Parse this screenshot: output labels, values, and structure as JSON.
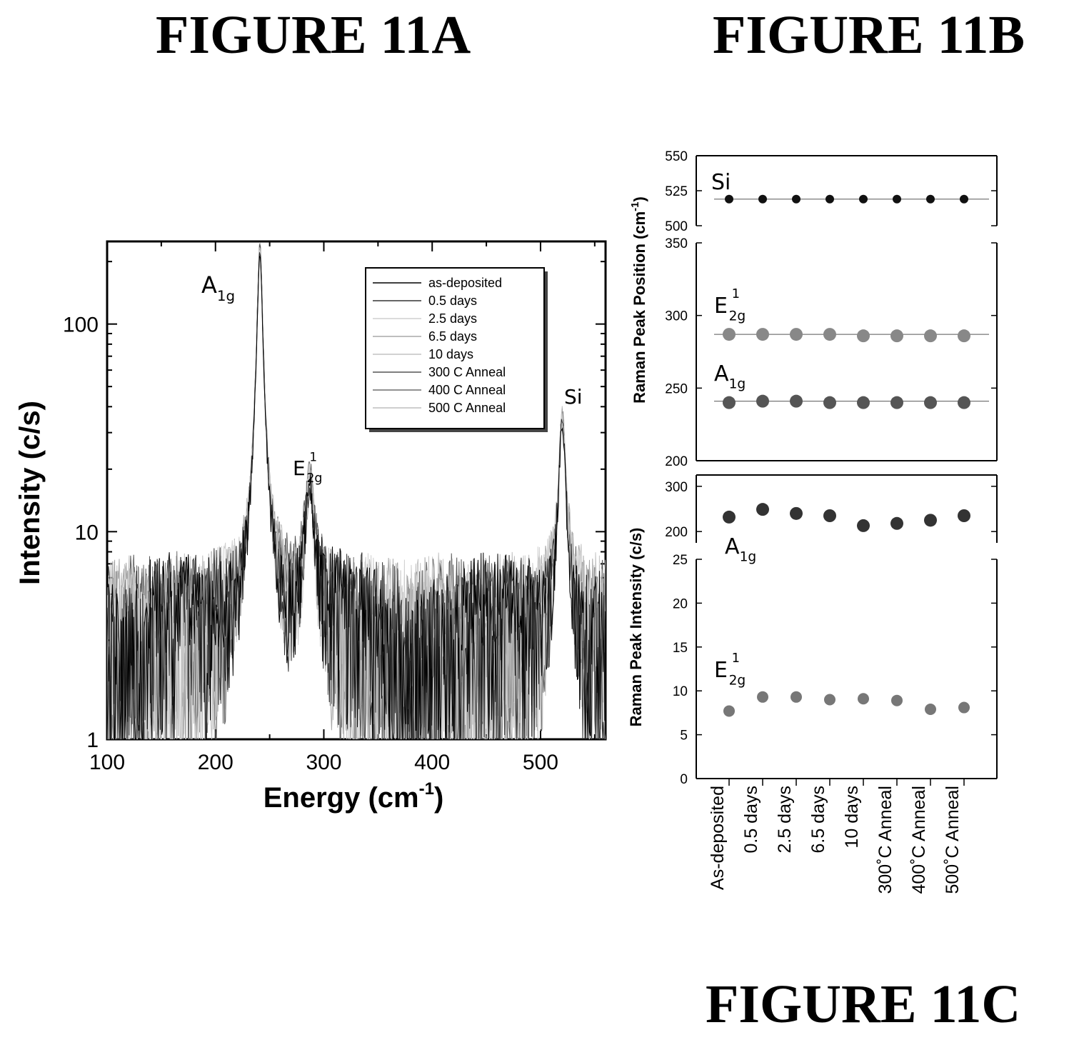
{
  "figure_titles": {
    "a": "FIGURE 11A",
    "b": "FIGURE 11B",
    "c": "FIGURE 11C"
  },
  "chart_data": [
    {
      "type": "line",
      "panel": "11A",
      "xlabel": "Energy (cm",
      "xlabel_sup": "-1",
      "xlabel_end": ")",
      "ylabel": "Intensity (c/s)",
      "xlim": [
        100,
        560
      ],
      "ylim": [
        1,
        250
      ],
      "yscale": "log",
      "xticks": [
        "100",
        "200",
        "300",
        "400",
        "500"
      ],
      "yticks": [
        "1",
        "10",
        "100"
      ],
      "legend_position": "top-right",
      "series": [
        {
          "name": "as-deposited",
          "color": "#000000"
        },
        {
          "name": "0.5 days",
          "color": "#333333"
        },
        {
          "name": "2.5 days",
          "color": "#cfcfcf"
        },
        {
          "name": "6.5 days",
          "color": "#a8a8a8"
        },
        {
          "name": "10 days",
          "color": "#c4c4c4"
        },
        {
          "name": "300 C Anneal",
          "color": "#555555"
        },
        {
          "name": "400 C Anneal",
          "color": "#6f6f6f"
        },
        {
          "name": "500 C Anneal",
          "color": "#bdbdbd"
        }
      ],
      "peaks": [
        {
          "x": 241,
          "height": 250
        },
        {
          "x": 287,
          "height": 15
        },
        {
          "x": 520,
          "height": 35
        }
      ],
      "annotations": [
        {
          "main": "A",
          "sub": "1g"
        },
        {
          "main": "E",
          "sup": "1",
          "sub": "2g"
        },
        {
          "main": "Si"
        }
      ]
    },
    {
      "type": "scatter",
      "panel": "11B",
      "ylabel": "Raman Peak Position (cm",
      "ylabel_sup": "-1",
      "ylabel_end": ")",
      "categories": [
        "As-deposited",
        "0.5 days",
        "2.5 days",
        "6.5 days",
        "10 days",
        "300˚C Anneal",
        "400˚C Anneal",
        "500˚C Anneal"
      ],
      "upper_ylim": [
        500,
        550
      ],
      "upper_yticks": [
        "500",
        "525",
        "550"
      ],
      "lower_ylim": [
        200,
        350
      ],
      "lower_yticks": [
        "200",
        "250",
        "300",
        "350"
      ],
      "series": [
        {
          "label": {
            "main": "Si"
          },
          "values": [
            519,
            519,
            519,
            519,
            519,
            519,
            519,
            519
          ],
          "reference": 519
        },
        {
          "label": {
            "main": "E",
            "sup": "1",
            "sub": "2g"
          },
          "values": [
            287,
            287,
            287,
            287,
            286,
            286,
            286,
            286
          ],
          "reference": 287
        },
        {
          "label": {
            "main": "A",
            "sub": "1g"
          },
          "values": [
            240,
            241,
            241,
            240,
            240,
            240,
            240,
            240
          ],
          "reference": 241
        }
      ]
    },
    {
      "type": "scatter",
      "panel": "11C",
      "ylabel": "Raman Peak Intensity (c/s)",
      "categories": [
        "As-deposited",
        "0.5 days",
        "2.5 days",
        "6.5 days",
        "10 days",
        "300˚C Anneal",
        "400˚C Anneal",
        "500˚C Anneal"
      ],
      "upper_ylim": [
        175,
        325
      ],
      "upper_yticks": [
        "200",
        "300"
      ],
      "lower_ylim": [
        0,
        25
      ],
      "lower_yticks": [
        "0",
        "5",
        "10",
        "15",
        "20",
        "25"
      ],
      "series": [
        {
          "label": {
            "main": "A",
            "sub": "1g"
          },
          "values": [
            232,
            249,
            240,
            235,
            213,
            218,
            225,
            235
          ]
        },
        {
          "label": {
            "main": "E",
            "sup": "1",
            "sub": "2g"
          },
          "values": [
            7.7,
            9.3,
            9.3,
            9.0,
            9.1,
            8.9,
            7.9,
            8.1
          ]
        }
      ]
    }
  ]
}
